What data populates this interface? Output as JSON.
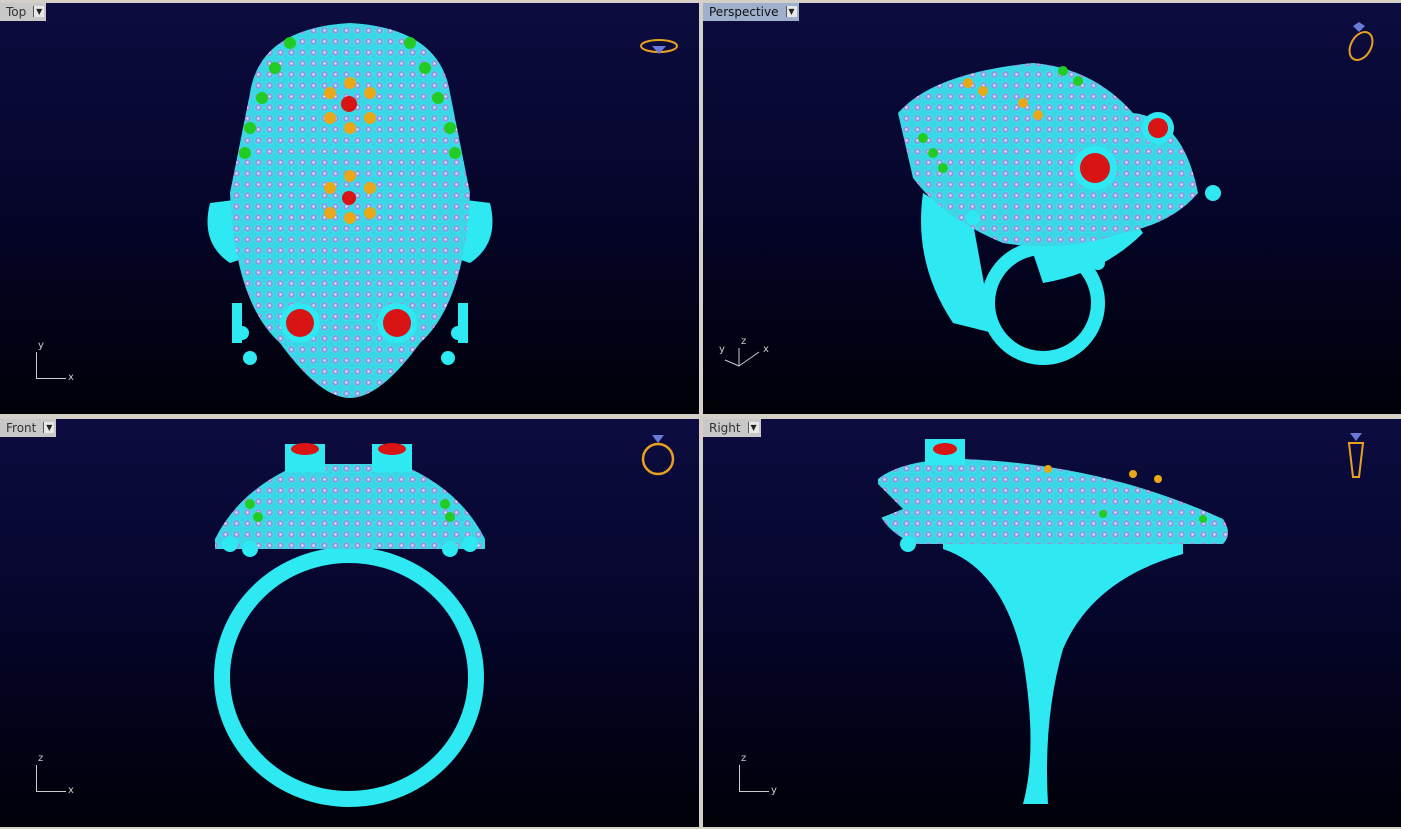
{
  "viewports": [
    {
      "label": "Top",
      "active": false,
      "axes": [
        "y",
        "x"
      ]
    },
    {
      "label": "Perspective",
      "active": true,
      "axes": [
        "y",
        "z",
        "x"
      ]
    },
    {
      "label": "Front",
      "active": false,
      "axes": [
        "z",
        "x"
      ]
    },
    {
      "label": "Right",
      "active": false,
      "axes": [
        "z",
        "y"
      ]
    }
  ],
  "colors": {
    "metal": "#2ee8f2",
    "stone": "#8a9ee0",
    "ruby": "#d81414",
    "emerald": "#22cc22",
    "citrine": "#e8a818",
    "background_top": "#0c0c40",
    "icon": "#e8a020"
  }
}
